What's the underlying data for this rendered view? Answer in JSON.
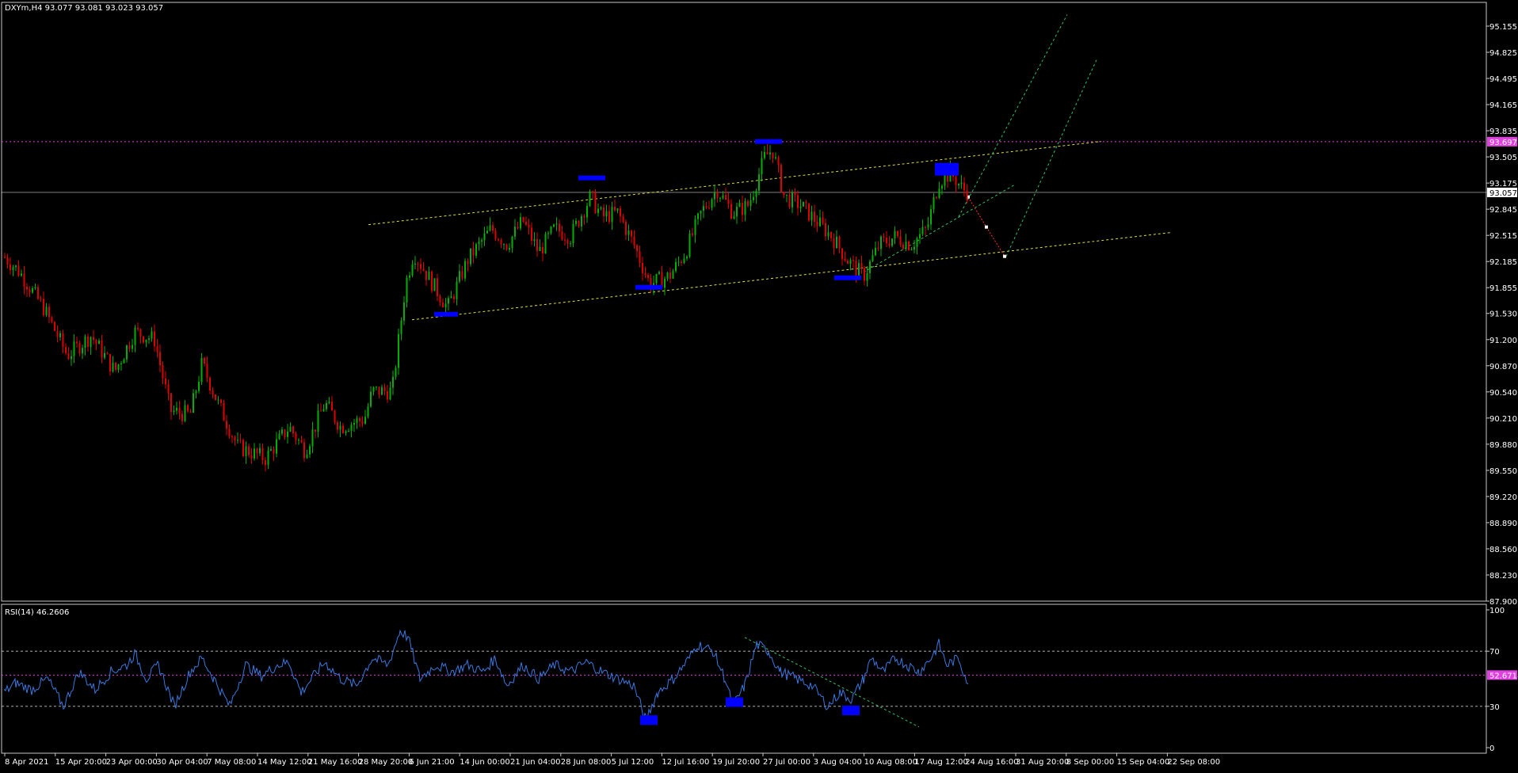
{
  "colors": {
    "background": "#000000",
    "frame": "#c8c8c8",
    "axis_text": "#ffffff",
    "bull": "#00b000",
    "bear": "#e00000",
    "wick": "#c8c8c8",
    "rsi_line": "#3b78e0",
    "resistance": "#e040e0",
    "channel": "#e0e040",
    "fib": "#30c060",
    "marker": "#0000ff",
    "projection": "#ff3030",
    "current_price": "#ffffff"
  },
  "chart_data": [
    {
      "type": "candlestick",
      "header": "DXYm,H4  93.077 93.081 93.023 93.057",
      "y_ticks": [
        "95.155",
        "94.825",
        "94.495",
        "94.165",
        "93.835",
        "93.505",
        "93.175",
        "92.845",
        "92.515",
        "92.185",
        "91.855",
        "91.530",
        "91.200",
        "90.870",
        "90.540",
        "90.210",
        "89.880",
        "89.550",
        "89.220",
        "88.890",
        "88.560",
        "88.230",
        "87.900"
      ],
      "ylim": [
        87.9,
        95.155
      ],
      "x_ticks": [
        "8 Apr 2021",
        "15 Apr 20:00",
        "23 Apr 00:00",
        "30 Apr 04:00",
        "7 May 08:00",
        "14 May 12:00",
        "21 May 16:00",
        "28 May 20:00",
        "6 Jun 21:00",
        "14 Jun 00:00",
        "21 Jun 04:00",
        "28 Jun 08:00",
        "5 Jul 12:00",
        "12 Jul 16:00",
        "19 Jul 20:00",
        "27 Jul 00:00",
        "3 Aug 04:00",
        "10 Aug 08:00",
        "17 Aug 12:00",
        "24 Aug 16:00",
        "31 Aug 20:00",
        "8 Sep 00:00",
        "15 Sep 04:00",
        "22 Sep 08:00"
      ],
      "close_path": [
        [
          0,
          92.3
        ],
        [
          25,
          92.05
        ],
        [
          55,
          91.6
        ],
        [
          85,
          91.0
        ],
        [
          115,
          91.25
        ],
        [
          145,
          90.8
        ],
        [
          170,
          91.3
        ],
        [
          195,
          91.2
        ],
        [
          215,
          90.3
        ],
        [
          240,
          90.25
        ],
        [
          255,
          90.9
        ],
        [
          275,
          90.4
        ],
        [
          300,
          89.85
        ],
        [
          335,
          89.7
        ],
        [
          365,
          90.1
        ],
        [
          385,
          89.8
        ],
        [
          410,
          90.4
        ],
        [
          430,
          90.1
        ],
        [
          460,
          90.2
        ],
        [
          470,
          90.55
        ],
        [
          495,
          90.55
        ],
        [
          502,
          91.1
        ],
        [
          512,
          91.9
        ],
        [
          522,
          92.3
        ],
        [
          540,
          92.0
        ],
        [
          565,
          91.6
        ],
        [
          590,
          92.2
        ],
        [
          620,
          92.6
        ],
        [
          640,
          92.4
        ],
        [
          660,
          92.7
        ],
        [
          680,
          92.3
        ],
        [
          700,
          92.6
        ],
        [
          720,
          92.5
        ],
        [
          745,
          93.0
        ],
        [
          760,
          92.75
        ],
        [
          780,
          92.8
        ],
        [
          800,
          92.4
        ],
        [
          820,
          91.9
        ],
        [
          845,
          92.0
        ],
        [
          865,
          92.3
        ],
        [
          885,
          92.8
        ],
        [
          905,
          93.1
        ],
        [
          925,
          92.8
        ],
        [
          945,
          92.9
        ],
        [
          965,
          93.5
        ],
        [
          975,
          93.6
        ],
        [
          990,
          93.0
        ],
        [
          1010,
          92.9
        ],
        [
          1030,
          92.7
        ],
        [
          1050,
          92.5
        ],
        [
          1070,
          92.2
        ],
        [
          1090,
          92.0
        ],
        [
          1110,
          92.4
        ],
        [
          1130,
          92.5
        ],
        [
          1150,
          92.4
        ],
        [
          1170,
          92.6
        ],
        [
          1185,
          93.2
        ],
        [
          1200,
          93.3
        ],
        [
          1215,
          93.1
        ],
        [
          1222,
          93.057
        ]
      ],
      "current_price": "93.057",
      "resistance_label": "93.697",
      "resistance": 93.697,
      "channel_upper": [
        [
          465,
          92.65
        ],
        [
          1390,
          93.7
        ]
      ],
      "channel_lower": [
        [
          520,
          91.45
        ],
        [
          1477,
          92.55
        ]
      ],
      "fib_lines": [
        [
          [
            1090,
            92.05
          ],
          [
            1280,
            93.15
          ]
        ],
        [
          [
            1210,
            92.75
          ],
          [
            1347,
            95.3
          ]
        ],
        [
          [
            1270,
            92.25
          ],
          [
            1385,
            94.75
          ]
        ]
      ],
      "projection": [
        [
          1222,
          93.0
        ],
        [
          1245,
          92.62
        ],
        [
          1268,
          92.25
        ]
      ],
      "markers": [
        {
          "x": [
            548,
            578
          ],
          "y": 91.52
        },
        {
          "x": [
            730,
            764
          ],
          "y": 93.24
        },
        {
          "x": [
            802,
            836
          ],
          "y": 91.86
        },
        {
          "x": [
            953,
            987
          ],
          "y": 93.7
        },
        {
          "x": [
            1053,
            1087
          ],
          "y": 91.98
        },
        {
          "x": [
            1180,
            1210
          ],
          "y": 93.35,
          "h": 16
        }
      ]
    },
    {
      "type": "line",
      "header": "RSI(14) 46.2606",
      "y_ticks": [
        "100",
        "70",
        "30",
        "0"
      ],
      "ylim": [
        0,
        100
      ],
      "levels": [
        70,
        30
      ],
      "level_label": "52.6718",
      "level": 52.67,
      "series": [
        [
          5,
          40
        ],
        [
          20,
          47
        ],
        [
          40,
          42
        ],
        [
          60,
          50
        ],
        [
          80,
          30
        ],
        [
          100,
          55
        ],
        [
          120,
          42
        ],
        [
          140,
          55
        ],
        [
          160,
          60
        ],
        [
          170,
          68
        ],
        [
          185,
          50
        ],
        [
          200,
          60
        ],
        [
          220,
          30
        ],
        [
          240,
          55
        ],
        [
          255,
          65
        ],
        [
          270,
          50
        ],
        [
          290,
          30
        ],
        [
          310,
          60
        ],
        [
          330,
          52
        ],
        [
          350,
          60
        ],
        [
          365,
          62
        ],
        [
          380,
          40
        ],
        [
          400,
          55
        ],
        [
          410,
          62
        ],
        [
          430,
          50
        ],
        [
          450,
          45
        ],
        [
          470,
          65
        ],
        [
          490,
          60
        ],
        [
          505,
          85
        ],
        [
          515,
          80
        ],
        [
          530,
          50
        ],
        [
          550,
          60
        ],
        [
          570,
          55
        ],
        [
          590,
          60
        ],
        [
          610,
          55
        ],
        [
          625,
          65
        ],
        [
          640,
          45
        ],
        [
          660,
          60
        ],
        [
          680,
          50
        ],
        [
          700,
          60
        ],
        [
          720,
          55
        ],
        [
          740,
          62
        ],
        [
          760,
          55
        ],
        [
          780,
          50
        ],
        [
          800,
          45
        ],
        [
          815,
          20
        ],
        [
          830,
          40
        ],
        [
          850,
          50
        ],
        [
          870,
          65
        ],
        [
          880,
          75
        ],
        [
          900,
          70
        ],
        [
          915,
          50
        ],
        [
          925,
          30
        ],
        [
          940,
          45
        ],
        [
          955,
          75
        ],
        [
          970,
          70
        ],
        [
          985,
          55
        ],
        [
          1005,
          50
        ],
        [
          1025,
          45
        ],
        [
          1045,
          30
        ],
        [
          1060,
          40
        ],
        [
          1075,
          35
        ],
        [
          1090,
          50
        ],
        [
          1100,
          65
        ],
        [
          1115,
          55
        ],
        [
          1130,
          65
        ],
        [
          1145,
          60
        ],
        [
          1160,
          55
        ],
        [
          1175,
          65
        ],
        [
          1185,
          75
        ],
        [
          1195,
          60
        ],
        [
          1210,
          65
        ],
        [
          1222,
          46.26
        ]
      ],
      "trendline": [
        [
          940,
          80
        ],
        [
          1160,
          15
        ]
      ],
      "markers": [
        {
          "x": [
            808,
            830
          ],
          "y": 20
        },
        {
          "x": [
            916,
            938
          ],
          "y": 33
        },
        {
          "x": [
            1063,
            1085
          ],
          "y": 27
        }
      ]
    }
  ]
}
